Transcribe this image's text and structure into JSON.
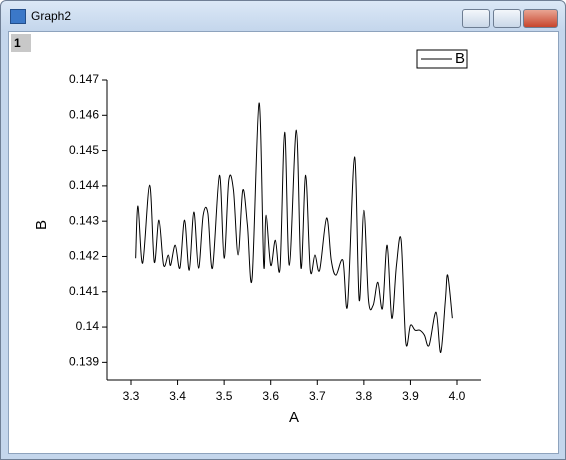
{
  "window": {
    "title": "Graph2",
    "layer": "1"
  },
  "chart_data": {
    "type": "line",
    "x": [
      3.31,
      3.315,
      3.325,
      3.34,
      3.35,
      3.36,
      3.37,
      3.38,
      3.385,
      3.395,
      3.405,
      3.415,
      3.425,
      3.435,
      3.445,
      3.455,
      3.465,
      3.475,
      3.49,
      3.5,
      3.51,
      3.52,
      3.53,
      3.54,
      3.55,
      3.56,
      3.575,
      3.585,
      3.59,
      3.6,
      3.61,
      3.62,
      3.63,
      3.64,
      3.655,
      3.665,
      3.675,
      3.685,
      3.695,
      3.705,
      3.72,
      3.73,
      3.74,
      3.755,
      3.765,
      3.78,
      3.79,
      3.8,
      3.81,
      3.82,
      3.83,
      3.84,
      3.85,
      3.86,
      3.87,
      3.88,
      3.89,
      3.9,
      3.91,
      3.92,
      3.93,
      3.94,
      3.955,
      3.965,
      3.975,
      3.98,
      3.99
    ],
    "series": [
      {
        "name": "B",
        "color": "#000000",
        "values": [
          0.14195,
          0.14343,
          0.14181,
          0.14402,
          0.14184,
          0.14303,
          0.14175,
          0.14204,
          0.14175,
          0.14232,
          0.14167,
          0.14303,
          0.14161,
          0.14326,
          0.14167,
          0.14317,
          0.14323,
          0.14167,
          0.1443,
          0.14195,
          0.14416,
          0.14388,
          0.14204,
          0.14388,
          0.14289,
          0.14138,
          0.14635,
          0.14175,
          0.14317,
          0.14175,
          0.14246,
          0.14167,
          0.14552,
          0.14175,
          0.14558,
          0.14167,
          0.1443,
          0.14161,
          0.14204,
          0.14161,
          0.14309,
          0.14189,
          0.14147,
          0.14189,
          0.14062,
          0.14482,
          0.14076,
          0.14331,
          0.14076,
          0.14062,
          0.14127,
          0.14053,
          0.14232,
          0.14025,
          0.14175,
          0.14246,
          0.13957,
          0.14005,
          0.13991,
          0.13991,
          0.13977,
          0.13948,
          0.14042,
          0.13928,
          0.14076,
          0.14147,
          0.14025
        ]
      }
    ],
    "xlabel": "A",
    "ylabel": "B",
    "xlim": [
      3.2485,
      4.0515
    ],
    "ylim": [
      0.1385,
      0.147
    ],
    "xticks": [
      3.3,
      3.4,
      3.5,
      3.6,
      3.7,
      3.8,
      3.9,
      {
        "value": 4,
        "label": "4.0"
      }
    ],
    "yticks": [
      0.139,
      0.14,
      0.141,
      0.142,
      0.143,
      0.144,
      0.145,
      0.146,
      0.147
    ],
    "legend": "top-right"
  }
}
